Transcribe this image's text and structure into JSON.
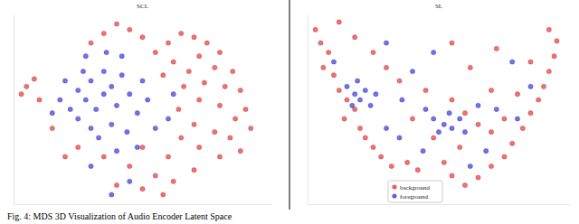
{
  "caption": "Fig. 4: MDS 3D Visualization of Audio Encoder Latent Space",
  "chart_data": [
    {
      "type": "scatter",
      "title": "SCL",
      "xlim": [
        0,
        100
      ],
      "ylim": [
        0,
        100
      ],
      "tick_labels": false,
      "series": [
        {
          "color": "#e8363a",
          "x": [
            60,
            65,
            70,
            75,
            80,
            72,
            62,
            68,
            78,
            85,
            88,
            82,
            74,
            66,
            58,
            55,
            50,
            45,
            40,
            35,
            30,
            90,
            86,
            80,
            72,
            64,
            70,
            78,
            84,
            88,
            80,
            72,
            65,
            60,
            55,
            62,
            70,
            50,
            45,
            40,
            35,
            25,
            20,
            15,
            5,
            3,
            8,
            10,
            92,
            58,
            50
          ],
          "values": [
            85,
            90,
            88,
            85,
            80,
            78,
            75,
            70,
            72,
            70,
            60,
            62,
            64,
            62,
            68,
            80,
            88,
            92,
            95,
            90,
            85,
            50,
            45,
            52,
            55,
            50,
            42,
            38,
            35,
            28,
            25,
            30,
            35,
            25,
            15,
            12,
            18,
            30,
            20,
            10,
            25,
            30,
            25,
            40,
            62,
            58,
            66,
            55,
            40,
            5,
            8
          ]
        },
        {
          "color": "#3636e0",
          "x": [
            25,
            28,
            30,
            35,
            32,
            38,
            40,
            22,
            27,
            35,
            42,
            45,
            48,
            38,
            30,
            25,
            18,
            20,
            33,
            44,
            52,
            50,
            42,
            36,
            55,
            48,
            40,
            30,
            60,
            15,
            38,
            45,
            62,
            28
          ],
          "values": [
            60,
            55,
            65,
            58,
            50,
            62,
            52,
            50,
            70,
            70,
            68,
            58,
            48,
            42,
            40,
            45,
            55,
            65,
            35,
            38,
            55,
            65,
            78,
            80,
            40,
            30,
            28,
            20,
            45,
            48,
            5,
            12,
            58,
            78
          ]
        }
      ]
    },
    {
      "type": "scatter",
      "title": "SL",
      "xlim": [
        0,
        100
      ],
      "ylim": [
        0,
        100
      ],
      "tick_labels": false,
      "legend": "lower center",
      "series": [
        {
          "name": "background",
          "color": "#e8363a",
          "x": [
            3,
            5,
            8,
            6,
            10,
            12,
            15,
            18,
            14,
            20,
            22,
            25,
            28,
            32,
            38,
            42,
            55,
            60,
            65,
            70,
            75,
            78,
            82,
            85,
            88,
            90,
            92,
            94,
            95,
            92,
            12,
            18,
            25,
            30,
            35,
            45,
            55,
            60,
            65,
            70,
            75,
            80,
            85,
            70,
            58,
            52,
            48,
            40,
            62,
            55,
            72
          ],
          "values": [
            92,
            85,
            80,
            72,
            68,
            60,
            55,
            50,
            45,
            40,
            35,
            30,
            25,
            20,
            22,
            18,
            15,
            10,
            14,
            20,
            25,
            32,
            40,
            48,
            55,
            62,
            70,
            78,
            86,
            92,
            96,
            88,
            80,
            72,
            65,
            60,
            55,
            48,
            42,
            38,
            45,
            58,
            75,
            60,
            30,
            22,
            35,
            45,
            72,
            85,
            82
          ]
        },
        {
          "name": "foreground",
          "color": "#3636e0",
          "x": [
            15,
            18,
            20,
            22,
            17,
            24,
            19,
            26,
            48,
            52,
            55,
            50,
            58,
            54,
            60,
            45,
            30,
            35,
            10,
            40,
            48,
            65,
            72,
            80,
            85,
            62,
            68,
            30,
            78,
            44,
            36
          ],
          "values": [
            62,
            58,
            55,
            60,
            52,
            52,
            65,
            58,
            45,
            42,
            40,
            38,
            45,
            48,
            38,
            50,
            40,
            35,
            75,
            70,
            80,
            52,
            50,
            45,
            62,
            20,
            28,
            85,
            75,
            28,
            55
          ]
        }
      ]
    }
  ]
}
